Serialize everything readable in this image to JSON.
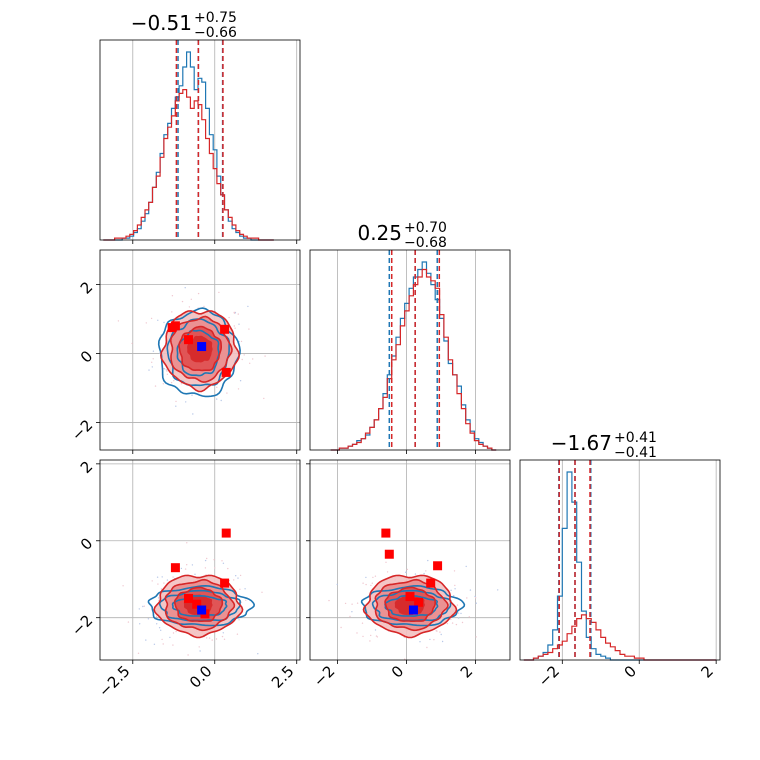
{
  "chart_data": {
    "type": "corner",
    "colors": {
      "red": "#d62728",
      "blue": "#1f77b4",
      "grid": "#b0b0b0",
      "frame": "#000000",
      "truth_red": "#ff0000",
      "truth_blue": "#0000ff"
    },
    "grid": true,
    "params": [
      {
        "title_main": "−0.51",
        "title_sup": "+0.75",
        "title_sub": "−0.66",
        "range": [
          -3.5,
          2.6
        ],
        "ticks": [
          -2.5,
          0.0,
          2.5
        ],
        "tick_labels": [
          "−2.5",
          "0.0",
          "2.5"
        ]
      },
      {
        "title_main": "0.25",
        "title_sup": "+0.70",
        "title_sub": "−0.68",
        "range": [
          -2.8,
          3.0
        ],
        "ticks": [
          -2,
          0,
          2
        ],
        "tick_labels": [
          "−2",
          "0",
          "2"
        ]
      },
      {
        "title_main": "−1.67",
        "title_sup": "+0.41",
        "title_sub": "−0.41",
        "range": [
          -3.1,
          2.1
        ],
        "ticks": [
          -2,
          0,
          2
        ],
        "tick_labels": [
          "−2",
          "0",
          "2"
        ]
      }
    ],
    "marginals": [
      {
        "bins": [
          -3.4,
          1.8
        ],
        "blue": [
          0,
          0,
          0,
          0,
          0,
          1,
          1,
          2,
          4,
          6,
          10,
          14,
          20,
          28,
          36,
          46,
          56,
          62,
          70,
          76,
          82,
          92,
          100,
          92,
          80,
          86,
          84,
          70,
          56,
          48,
          34,
          24,
          16,
          10,
          6,
          4,
          2,
          1,
          1,
          0,
          0,
          0,
          0,
          0,
          0
        ],
        "red": [
          0,
          0,
          0,
          1,
          1,
          1,
          2,
          3,
          5,
          8,
          12,
          16,
          20,
          28,
          34,
          44,
          54,
          60,
          66,
          74,
          78,
          80,
          76,
          70,
          74,
          72,
          64,
          54,
          46,
          38,
          30,
          24,
          16,
          12,
          8,
          5,
          3,
          2,
          1,
          1,
          1,
          0,
          0,
          0,
          0
        ],
        "blue_quantiles": [
          -1.12,
          -0.5,
          0.24
        ],
        "red_quantiles": [
          -1.17,
          -0.5,
          0.25
        ]
      },
      {
        "bins": [
          -2.2,
          2.6
        ],
        "blue": [
          0,
          0,
          1,
          1,
          2,
          3,
          5,
          6,
          8,
          12,
          16,
          22,
          30,
          40,
          50,
          60,
          70,
          78,
          86,
          92,
          96,
          100,
          94,
          88,
          80,
          70,
          58,
          46,
          40,
          34,
          24,
          16,
          10,
          6,
          4,
          2,
          1,
          0
        ],
        "red": [
          0,
          0,
          1,
          1,
          2,
          3,
          4,
          6,
          9,
          12,
          16,
          22,
          28,
          38,
          48,
          56,
          66,
          74,
          82,
          88,
          92,
          96,
          92,
          90,
          86,
          72,
          60,
          48,
          40,
          30,
          22,
          14,
          9,
          5,
          3,
          2,
          1,
          0
        ],
        "blue_quantiles": [
          -0.5,
          0.25,
          0.89
        ],
        "red_quantiles": [
          -0.43,
          0.25,
          0.95
        ]
      },
      {
        "bins": [
          -3.0,
          2.0
        ],
        "blue": [
          0,
          0,
          1,
          2,
          4,
          8,
          16,
          34,
          70,
          100,
          84,
          52,
          26,
          12,
          6,
          3,
          2,
          1,
          0,
          0,
          0,
          0,
          0,
          0,
          0,
          0,
          0,
          0,
          0,
          0,
          0,
          0,
          0,
          0,
          0,
          0,
          0,
          0,
          0,
          0
        ],
        "red": [
          0,
          0,
          1,
          2,
          3,
          4,
          6,
          8,
          10,
          14,
          18,
          22,
          24,
          22,
          20,
          16,
          12,
          9,
          7,
          5,
          3,
          2,
          2,
          1,
          1,
          0,
          0,
          0,
          0,
          0,
          0,
          0,
          0,
          0,
          0,
          0,
          0,
          0,
          0,
          0
        ],
        "blue_quantiles": [
          -2.09,
          -1.67,
          -1.26
        ],
        "red_quantiles": [
          -2.08,
          -1.67,
          -1.28
        ]
      }
    ],
    "joints": [
      {
        "x": 0,
        "y": 1,
        "red_center": [
          -0.45,
          0.12
        ],
        "red_sigma": [
          0.55,
          0.55
        ],
        "blue_center": [
          -0.5,
          0.0
        ],
        "blue_sigma": [
          0.6,
          0.62
        ],
        "red_truths": [
          [
            -1.2,
            0.8
          ],
          [
            -1.3,
            0.75
          ],
          [
            0.3,
            0.7
          ],
          [
            -0.8,
            0.4
          ],
          [
            0.35,
            -0.55
          ]
        ],
        "blue_truth": [
          -0.4,
          0.2
        ]
      },
      {
        "x": 0,
        "y": 2,
        "red_center": [
          -0.5,
          -1.67
        ],
        "red_sigma": [
          0.62,
          0.38
        ],
        "blue_center": [
          -0.45,
          -1.7
        ],
        "blue_sigma": [
          0.78,
          0.25
        ],
        "red_truths": [
          [
            0.35,
            0.2
          ],
          [
            -1.2,
            -0.7
          ],
          [
            0.3,
            -1.1
          ],
          [
            -0.8,
            -1.5
          ],
          [
            -0.55,
            -1.65
          ],
          [
            -0.3,
            -1.9
          ]
        ],
        "blue_truth": [
          -0.4,
          -1.8
        ]
      },
      {
        "x": 1,
        "y": 2,
        "red_center": [
          0.1,
          -1.67
        ],
        "red_sigma": [
          0.62,
          0.38
        ],
        "blue_center": [
          0.15,
          -1.7
        ],
        "blue_sigma": [
          0.72,
          0.25
        ],
        "red_truths": [
          [
            -0.6,
            0.2
          ],
          [
            -0.5,
            -0.35
          ],
          [
            0.9,
            -0.65
          ],
          [
            0.7,
            -1.1
          ],
          [
            0.1,
            -1.45
          ],
          [
            0.35,
            -1.6
          ]
        ],
        "blue_truth": [
          0.2,
          -1.8
        ]
      }
    ]
  }
}
